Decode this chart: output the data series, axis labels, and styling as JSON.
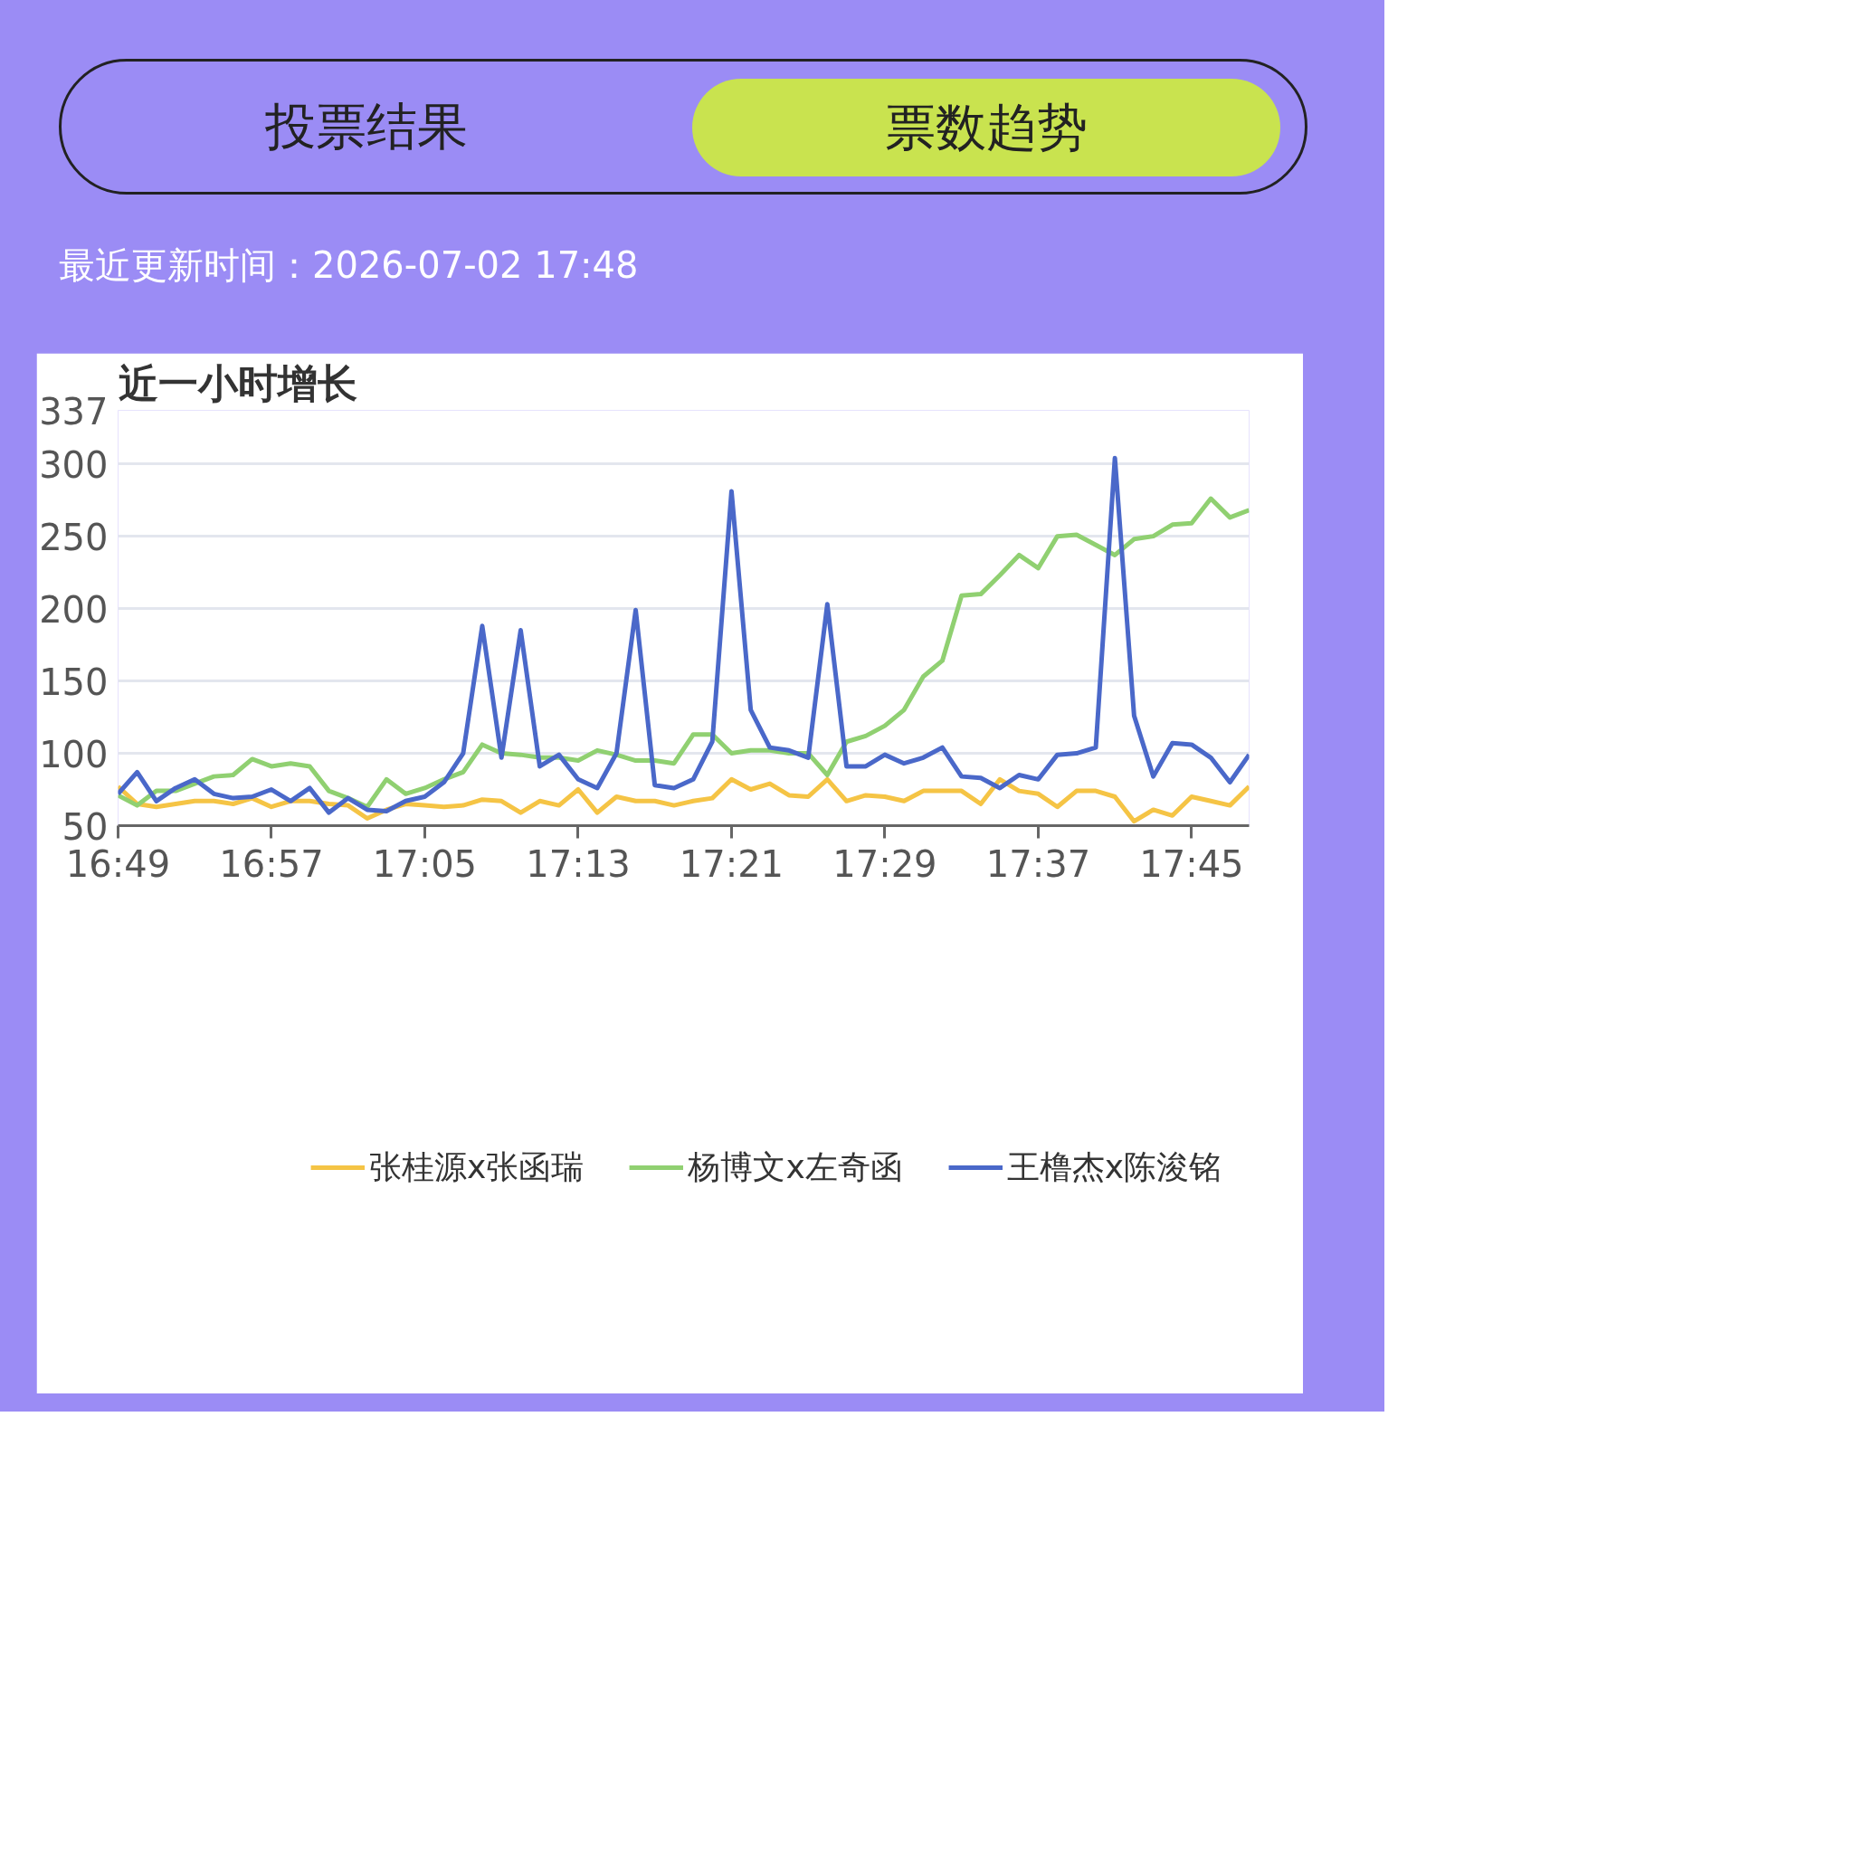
{
  "chart_data": {
    "type": "line",
    "title": "近一小时增长",
    "annotations": [
      "投票结果",
      "票数趋势",
      "最近更新时间：2026-07-02 17:48"
    ],
    "x": [
      16.8167,
      16.8333,
      16.85,
      16.8667,
      16.8833,
      16.9,
      16.9167,
      16.9333,
      16.95,
      16.9667,
      16.9833,
      17,
      17.0167,
      17.0333,
      17.05,
      17.0667,
      17.0833,
      17.1,
      17.1167,
      17.1333,
      17.15,
      17.1667,
      17.1833,
      17.2,
      17.2167,
      17.2333,
      17.25,
      17.2667,
      17.2833,
      17.3,
      17.3167,
      17.3333,
      17.35,
      17.3667,
      17.3833,
      17.4,
      17.4167,
      17.4333,
      17.45,
      17.4667,
      17.4833,
      17.5,
      17.5167,
      17.5333,
      17.55,
      17.5667,
      17.5833,
      17.6,
      17.6167,
      17.6333,
      17.65,
      17.6667,
      17.6833,
      17.7,
      17.7167,
      17.7333,
      17.75,
      17.7667,
      17.7833,
      17.8
    ],
    "xlim": [
      16.8167,
      17.8
    ],
    "xticks": [
      {
        "value": 16.8167,
        "label": "16:49"
      },
      {
        "value": 16.95,
        "label": "16:57"
      },
      {
        "value": 17.0833,
        "label": "17:05"
      },
      {
        "value": 17.2167,
        "label": "17:13"
      },
      {
        "value": 17.35,
        "label": "17:21"
      },
      {
        "value": 17.4833,
        "label": "17:29"
      },
      {
        "value": 17.6167,
        "label": "17:37"
      },
      {
        "value": 17.75,
        "label": "17:45"
      }
    ],
    "ylim": [
      50,
      337
    ],
    "yticks": [
      50,
      100,
      150,
      200,
      250,
      300,
      337
    ],
    "grid": "y",
    "legend": "bottom",
    "marker": "none",
    "line_style": "solid",
    "series": [
      {
        "name": "张桂源x张函瑞",
        "color": "#f5c445",
        "values": [
          77,
          65,
          63,
          65,
          67,
          67,
          65,
          69,
          63,
          67,
          67,
          65,
          64,
          55,
          61,
          65,
          64,
          63,
          64,
          68,
          67,
          59,
          67,
          64,
          75,
          59,
          70,
          67,
          67,
          64,
          67,
          69,
          82,
          75,
          79,
          71,
          70,
          82,
          67,
          71,
          70,
          67,
          74,
          74,
          74,
          65,
          82,
          74,
          72,
          63,
          74,
          74,
          70,
          53,
          61,
          57,
          70,
          67,
          64,
          77
        ]
      },
      {
        "name": "杨博文x左奇函",
        "color": "#90d071",
        "values": [
          71,
          64,
          74,
          74,
          79,
          84,
          85,
          96,
          91,
          93,
          91,
          74,
          69,
          63,
          82,
          72,
          76,
          82,
          87,
          106,
          100,
          99,
          97,
          97,
          95,
          102,
          99,
          95,
          95,
          93,
          113,
          113,
          100,
          102,
          102,
          100,
          100,
          85,
          108,
          112,
          119,
          130,
          153,
          164,
          209,
          210,
          223,
          237,
          228,
          250,
          251,
          244,
          237,
          248,
          250,
          258,
          259,
          276,
          263,
          268
        ]
      },
      {
        "name": "王橹杰x陈浚铭",
        "color": "#4a68c9",
        "values": [
          72,
          87,
          67,
          76,
          82,
          72,
          69,
          70,
          75,
          67,
          76,
          59,
          69,
          61,
          60,
          67,
          70,
          80,
          100,
          188,
          97,
          185,
          91,
          99,
          82,
          76,
          100,
          199,
          78,
          76,
          82,
          108,
          281,
          130,
          104,
          102,
          97,
          203,
          91,
          91,
          99,
          93,
          97,
          104,
          84,
          83,
          76,
          85,
          82,
          99,
          100,
          104,
          304,
          126,
          84,
          107,
          106,
          97,
          80,
          99
        ]
      }
    ]
  }
}
